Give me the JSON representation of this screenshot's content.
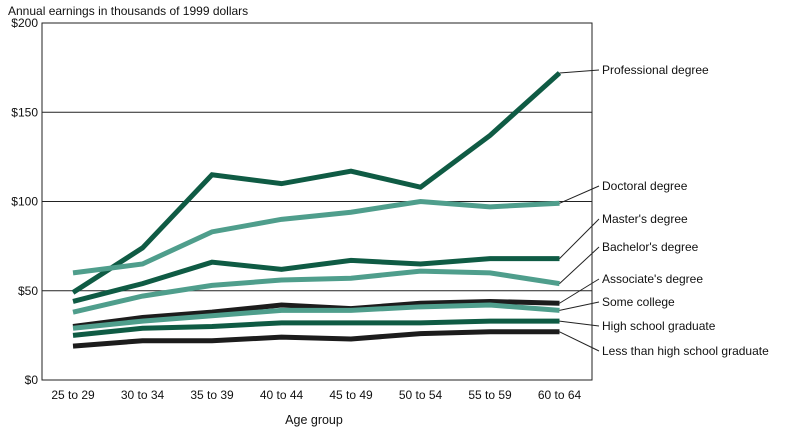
{
  "chart_data": {
    "type": "line",
    "title": "",
    "ylabel": "Annual earnings in thousands of 1999 dollars",
    "xlabel": "Age group",
    "ylim": [
      0,
      200
    ],
    "yticks": [
      {
        "value": 0,
        "label": "$0"
      },
      {
        "value": 50,
        "label": "$50"
      },
      {
        "value": 100,
        "label": "$100"
      },
      {
        "value": 150,
        "label": "$150"
      },
      {
        "value": 200,
        "label": "$200"
      }
    ],
    "grid": "horizontal at $50, $100, $150",
    "legend": "labels at right end of each line",
    "categories": [
      "25 to 29",
      "30 to 34",
      "35 to 39",
      "40 to 44",
      "45 to 49",
      "50 to 54",
      "55 to 59",
      "60 to 64"
    ],
    "series": [
      {
        "name": "Professional degree",
        "color": "#0f5b44",
        "values": [
          49,
          74,
          115,
          110,
          117,
          108,
          137,
          172
        ]
      },
      {
        "name": "Doctoral degree",
        "color": "#4f9e8c",
        "values": [
          60,
          65,
          83,
          90,
          94,
          100,
          97,
          99
        ]
      },
      {
        "name": "Master's degree",
        "color": "#0f5b44",
        "values": [
          44,
          54,
          66,
          62,
          67,
          65,
          68,
          68
        ]
      },
      {
        "name": "Bachelor's degree",
        "color": "#4f9e8c",
        "values": [
          38,
          47,
          53,
          56,
          57,
          61,
          60,
          54
        ]
      },
      {
        "name": "Associate's degree",
        "color": "#1c1c1c",
        "values": [
          30,
          35,
          38,
          42,
          40,
          43,
          44,
          43
        ]
      },
      {
        "name": "Some college",
        "color": "#4f9e8c",
        "values": [
          29,
          33,
          36,
          39,
          39,
          41,
          42,
          39
        ]
      },
      {
        "name": "High school graduate",
        "color": "#0f5b44",
        "values": [
          25,
          29,
          30,
          32,
          32,
          32,
          33,
          33
        ]
      },
      {
        "name": "Less than high school graduate",
        "color": "#1c1c1c",
        "values": [
          19,
          22,
          22,
          24,
          23,
          26,
          27,
          27
        ]
      }
    ]
  }
}
